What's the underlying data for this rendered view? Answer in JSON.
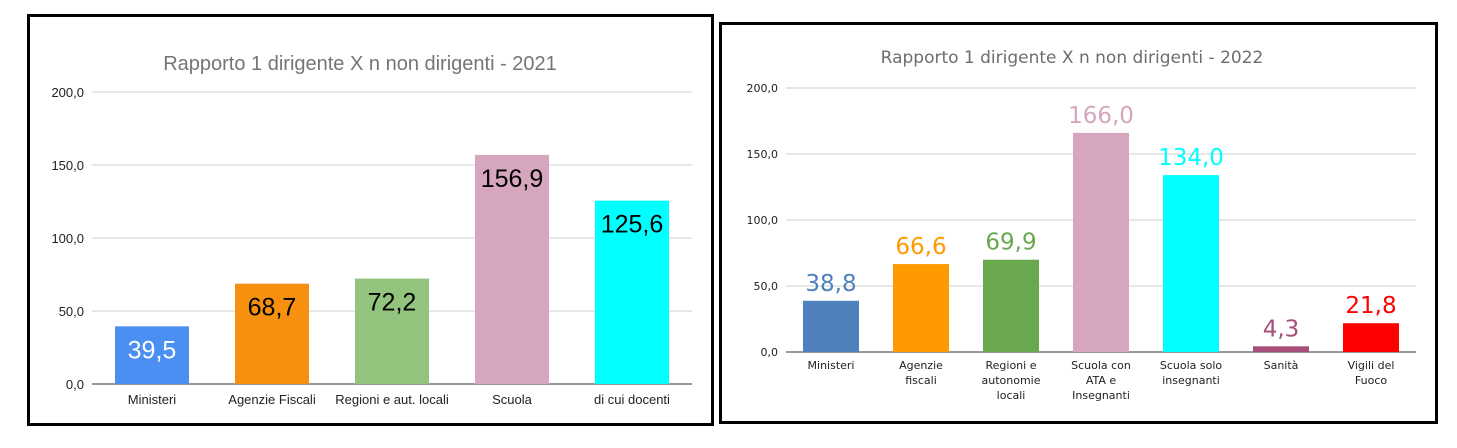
{
  "chart_data": [
    {
      "type": "bar",
      "title": "Rapporto 1 dirigente  X  n non dirigenti - 2021",
      "xlabel": "",
      "ylabel": "",
      "ylim": [
        0,
        200
      ],
      "yticks": [
        "0,0",
        "50,0",
        "100,0",
        "150,0",
        "200,0"
      ],
      "categories": [
        "Ministeri",
        "Agenzie Fiscali",
        "Regioni e aut. locali",
        "Scuola",
        "di cui docenti"
      ],
      "values": [
        39.5,
        68.7,
        72.2,
        156.9,
        125.6
      ],
      "data_labels": [
        "39,5",
        "68,7",
        "72,2",
        "156,9",
        "125,6"
      ],
      "colors": [
        "#4a8ff1",
        "#f6900e",
        "#93c47d",
        "#d5a6bd",
        "#00ffff"
      ],
      "label_colors": [
        "#ffffff",
        "#000000",
        "#000000",
        "#000000",
        "#000000"
      ],
      "grid": true,
      "legend": "none"
    },
    {
      "type": "bar",
      "title": "Rapporto 1 dirigente  X  n non dirigenti - 2022",
      "xlabel": "",
      "ylabel": "",
      "ylim": [
        0,
        200
      ],
      "yticks": [
        "0,0",
        "50,0",
        "100,0",
        "150,0",
        "200,0"
      ],
      "categories": [
        "Ministeri",
        "Agenzie fiscali",
        "Regioni e autonomie locali",
        "Scuola con ATA e Insegnanti",
        "Scuola solo insegnanti",
        "Sanità",
        "Vigili del Fuoco"
      ],
      "category_lines": [
        [
          "Ministeri"
        ],
        [
          "Agenzie",
          "fiscali"
        ],
        [
          "Regioni e",
          "autonomie",
          "locali"
        ],
        [
          "Scuola con",
          "ATA e",
          "Insegnanti"
        ],
        [
          "Scuola solo",
          "insegnanti"
        ],
        [
          "Sanità"
        ],
        [
          "Vigili del",
          "Fuoco"
        ]
      ],
      "values": [
        38.8,
        66.6,
        69.9,
        166.0,
        134.0,
        4.3,
        21.8
      ],
      "data_labels": [
        "38,8",
        "66,6",
        "69,9",
        "166,0",
        "134,0",
        "4,3",
        "21,8"
      ],
      "colors": [
        "#4f81bd",
        "#ff9900",
        "#6aa84f",
        "#d5a6bd",
        "#00ffff",
        "#a64d79",
        "#ff0000"
      ],
      "label_colors": [
        "#4f81bd",
        "#ff9900",
        "#6aa84f",
        "#d5a6bd",
        "#00ffff",
        "#a64d79",
        "#ff0000"
      ],
      "grid": true,
      "legend": "none"
    }
  ]
}
